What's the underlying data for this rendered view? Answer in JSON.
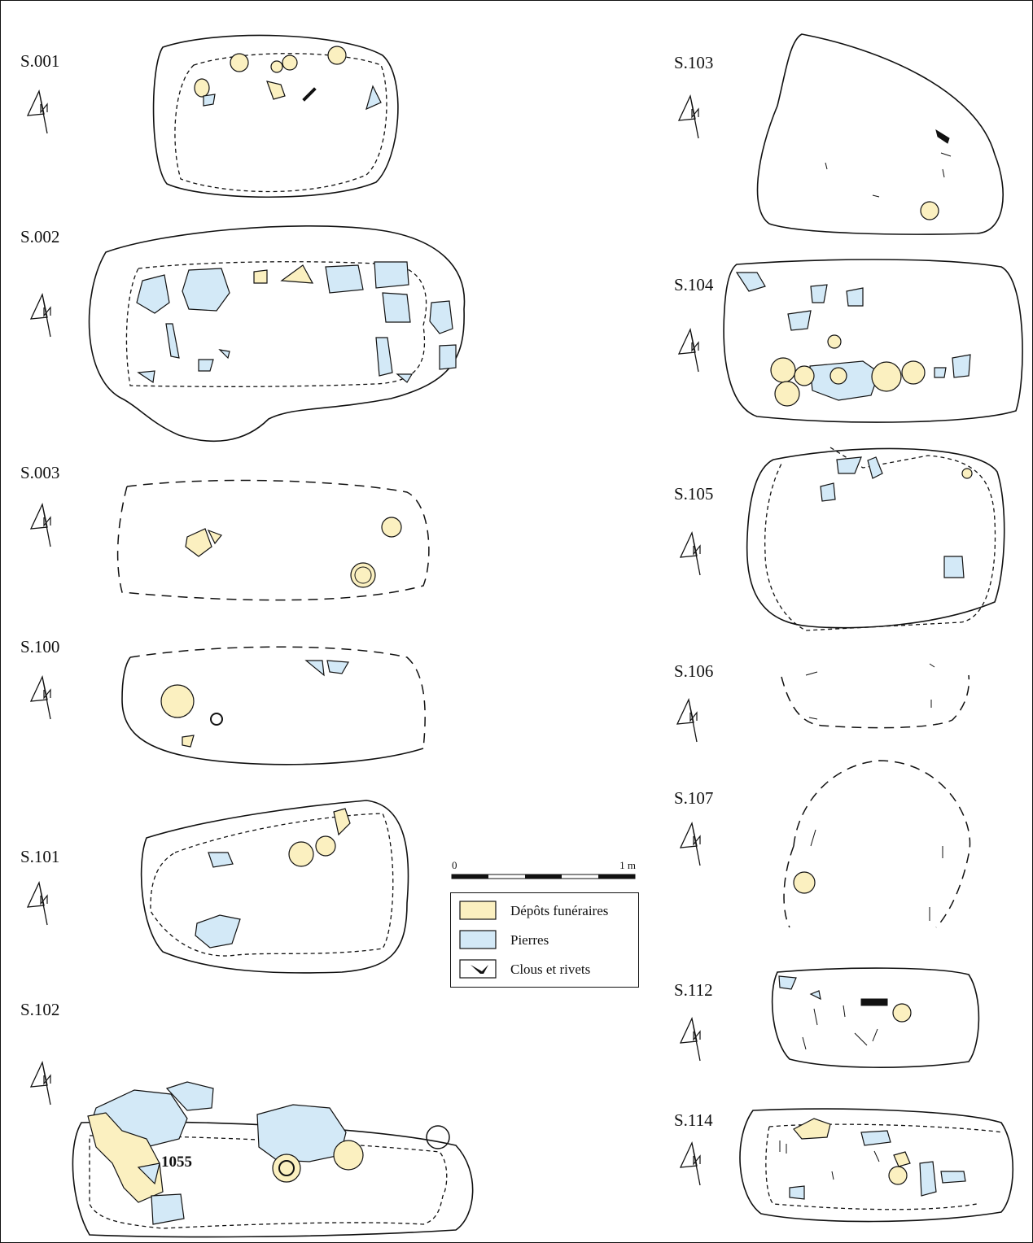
{
  "features": [
    {
      "label": "S.001"
    },
    {
      "label": "S.002"
    },
    {
      "label": "S.003"
    },
    {
      "label": "S.100"
    },
    {
      "label": "S.101"
    },
    {
      "label": "S.102"
    },
    {
      "label": "S.103"
    },
    {
      "label": "S.104"
    },
    {
      "label": "S.105"
    },
    {
      "label": "S.106"
    },
    {
      "label": "S.107"
    },
    {
      "label": "S.112"
    },
    {
      "label": "S.114"
    }
  ],
  "annotations": [
    {
      "label": "1055"
    }
  ],
  "scale": {
    "start": "0",
    "end": "1 m"
  },
  "legend": [
    {
      "label": "Dépôts funéraires"
    },
    {
      "label": "Pierres"
    },
    {
      "label": "Clous et rivets"
    }
  ]
}
